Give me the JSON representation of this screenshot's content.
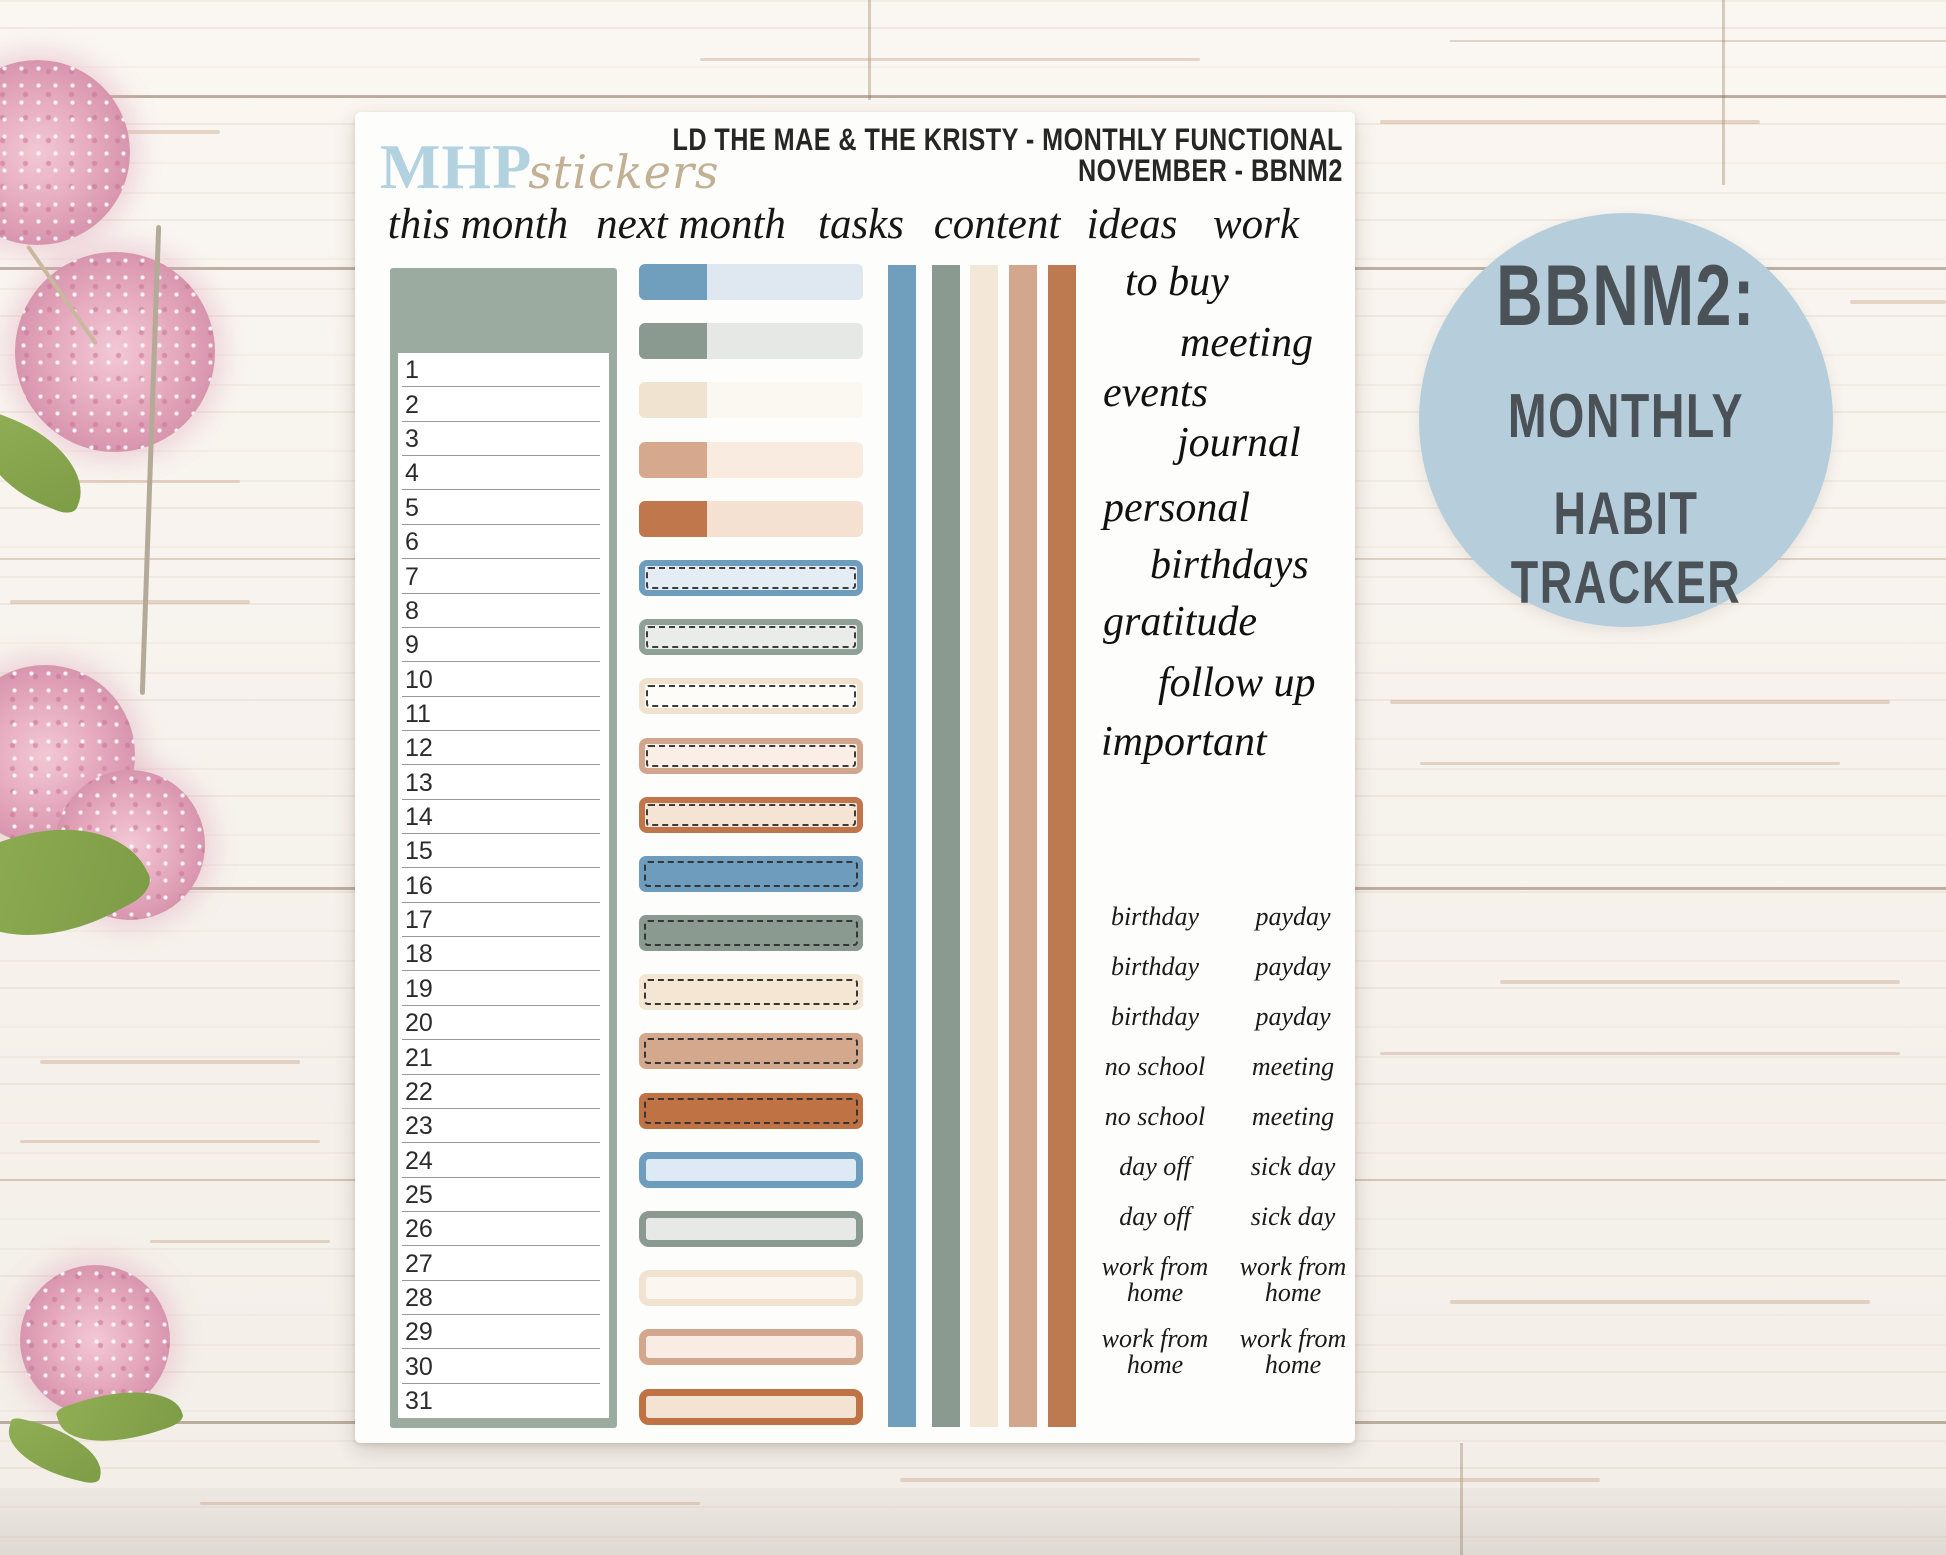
{
  "sheet": {
    "logo": {
      "brand": "MHP",
      "suffix": "stickers"
    },
    "title_line1": "LD THE MAE & THE KRISTY - MONTHLY FUNCTIONAL",
    "title_line2": "NOVEMBER - BBNM2",
    "column_headers": [
      "this month",
      "next month",
      "tasks",
      "content",
      "ideas",
      "work"
    ],
    "days": [
      "1",
      "2",
      "3",
      "4",
      "5",
      "6",
      "7",
      "8",
      "9",
      "10",
      "11",
      "12",
      "13",
      "14",
      "15",
      "16",
      "17",
      "18",
      "19",
      "20",
      "21",
      "22",
      "23",
      "24",
      "25",
      "26",
      "27",
      "28",
      "29",
      "30",
      "31"
    ],
    "category_words": [
      "to buy",
      "meeting",
      "events",
      "journal",
      "personal",
      "birthdays",
      "gratitude",
      "follow up",
      "important"
    ],
    "mini_label_pairs": [
      {
        "left": "birthday",
        "right": "payday"
      },
      {
        "left": "birthday",
        "right": "payday"
      },
      {
        "left": "birthday",
        "right": "payday"
      },
      {
        "left": "no school",
        "right": "meeting"
      },
      {
        "left": "no school",
        "right": "meeting"
      },
      {
        "left": "day off",
        "right": "sick day"
      },
      {
        "left": "day off",
        "right": "sick day"
      },
      {
        "left": "work from home",
        "right": "work from home"
      },
      {
        "left": "work from home",
        "right": "work from home"
      }
    ],
    "next_month_rows": [
      {
        "type": "twotone",
        "main": "#6f9fbd",
        "light": "#dfe8f1"
      },
      {
        "type": "twotone",
        "main": "#8a9a90",
        "light": "#e5e8e4"
      },
      {
        "type": "twotone",
        "main": "#f0e3d0",
        "light": "#fbf8f2"
      },
      {
        "type": "twotone",
        "main": "#d6a88e",
        "light": "#f9ebe0"
      },
      {
        "type": "twotone",
        "main": "#c0774b",
        "light": "#f4e1d1"
      },
      {
        "type": "stitch-outline",
        "main": "#6d9cbc",
        "fill": "#e4ecf4"
      },
      {
        "type": "stitch-outline",
        "main": "#8fa096",
        "fill": "#e9ece8"
      },
      {
        "type": "stitch-outline",
        "main": "#f0e2cf",
        "fill": "#fdfcf8"
      },
      {
        "type": "stitch-outline",
        "main": "#d2a68d",
        "fill": "#faeee6"
      },
      {
        "type": "stitch-outline",
        "main": "#c0754a",
        "fill": "#f5e3d3"
      },
      {
        "type": "stitch-solid",
        "main": "#6d9cbc"
      },
      {
        "type": "stitch-solid",
        "main": "#8a9a90"
      },
      {
        "type": "stitch-solid",
        "main": "#f3e6d3"
      },
      {
        "type": "stitch-solid",
        "main": "#d4a88d"
      },
      {
        "type": "stitch-solid",
        "main": "#bf7244"
      },
      {
        "type": "plain-outline",
        "main": "#6d9cbc",
        "fill": "#dde9f4"
      },
      {
        "type": "plain-outline",
        "main": "#8a9a90",
        "fill": "#e6e9e5"
      },
      {
        "type": "plain-outline",
        "main": "#f1e3d0",
        "fill": "#fbf7f0"
      },
      {
        "type": "plain-outline",
        "main": "#d3a78e",
        "fill": "#f8ece3"
      },
      {
        "type": "plain-outline",
        "main": "#bf7244",
        "fill": "#f4e3d2"
      }
    ],
    "strip_colors": [
      "#6f9fbd",
      "#8a9a91",
      "#f3e8d8",
      "#d3a78e",
      "#bd7a50"
    ]
  },
  "badge": {
    "lines": [
      "BBNM2:",
      "MONTHLY",
      "HABIT TRACKER"
    ],
    "color": "#b6cedb"
  },
  "colors": {
    "logo_blue": "#b2d2e0",
    "logo_tan": "#c1b094",
    "month_box_green": "#9cab9f",
    "flower_pink": "#e7adc1",
    "leaf_green": "#7d9c46",
    "wood_seam_brown": "#70523a"
  }
}
